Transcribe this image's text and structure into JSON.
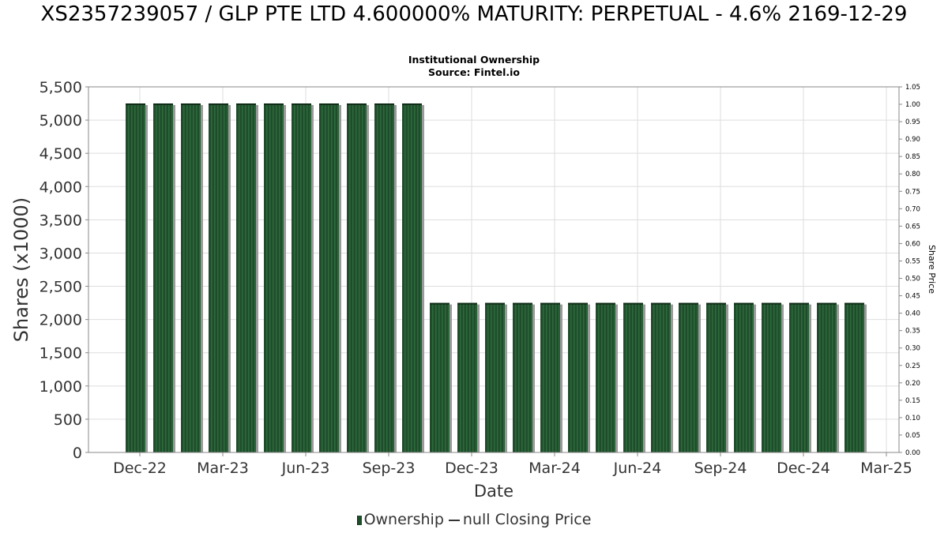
{
  "header": {
    "title": "XS2357239057 / GLP PTE LTD 4.600000% MATURITY: PERPETUAL - 4.6% 2169-12-29",
    "subtitle_line1": "Institutional Ownership",
    "subtitle_line2": "Source: Fintel.io"
  },
  "legend": {
    "ownership": "Ownership",
    "price": "null Closing Price"
  },
  "chart_data": {
    "type": "bar",
    "xlabel": "Date",
    "ylabel": "Shares (x1000)",
    "y2label": "Share Price",
    "ylim": [
      0,
      5500
    ],
    "y2lim": [
      0,
      1.05
    ],
    "yticks": [
      "0",
      "500",
      "1,000",
      "1,500",
      "2,000",
      "2,500",
      "3,000",
      "3,500",
      "4,000",
      "4,500",
      "5,000",
      "5,500"
    ],
    "y2ticks": [
      "0.00",
      "0.05",
      "0.10",
      "0.15",
      "0.20",
      "0.25",
      "0.30",
      "0.35",
      "0.40",
      "0.45",
      "0.50",
      "0.55",
      "0.60",
      "0.65",
      "0.70",
      "0.75",
      "0.80",
      "0.85",
      "0.90",
      "0.95",
      "1.00",
      "1.05"
    ],
    "xticks": [
      "Dec-22",
      "Mar-23",
      "Jun-23",
      "Sep-23",
      "Dec-23",
      "Mar-24",
      "Jun-24",
      "Sep-24",
      "Dec-24",
      "Mar-25"
    ],
    "grid": true,
    "legend_position": "bottom",
    "colors": {
      "bar": "#1f4d2b",
      "bar_stripe": "#2e6a3c",
      "bar_shadow": "#9a9a9a",
      "grid": "#dddddd",
      "frame": "#888888"
    },
    "series": [
      {
        "name": "Ownership",
        "values": [
          5250,
          5250,
          5250,
          5250,
          5250,
          5250,
          5250,
          5250,
          5250,
          5250,
          5250,
          2250,
          2250,
          2250,
          2250,
          2250,
          2250,
          2250,
          2250,
          2250,
          2250,
          2250,
          2250,
          2250,
          2250,
          2250,
          2250
        ]
      }
    ]
  }
}
